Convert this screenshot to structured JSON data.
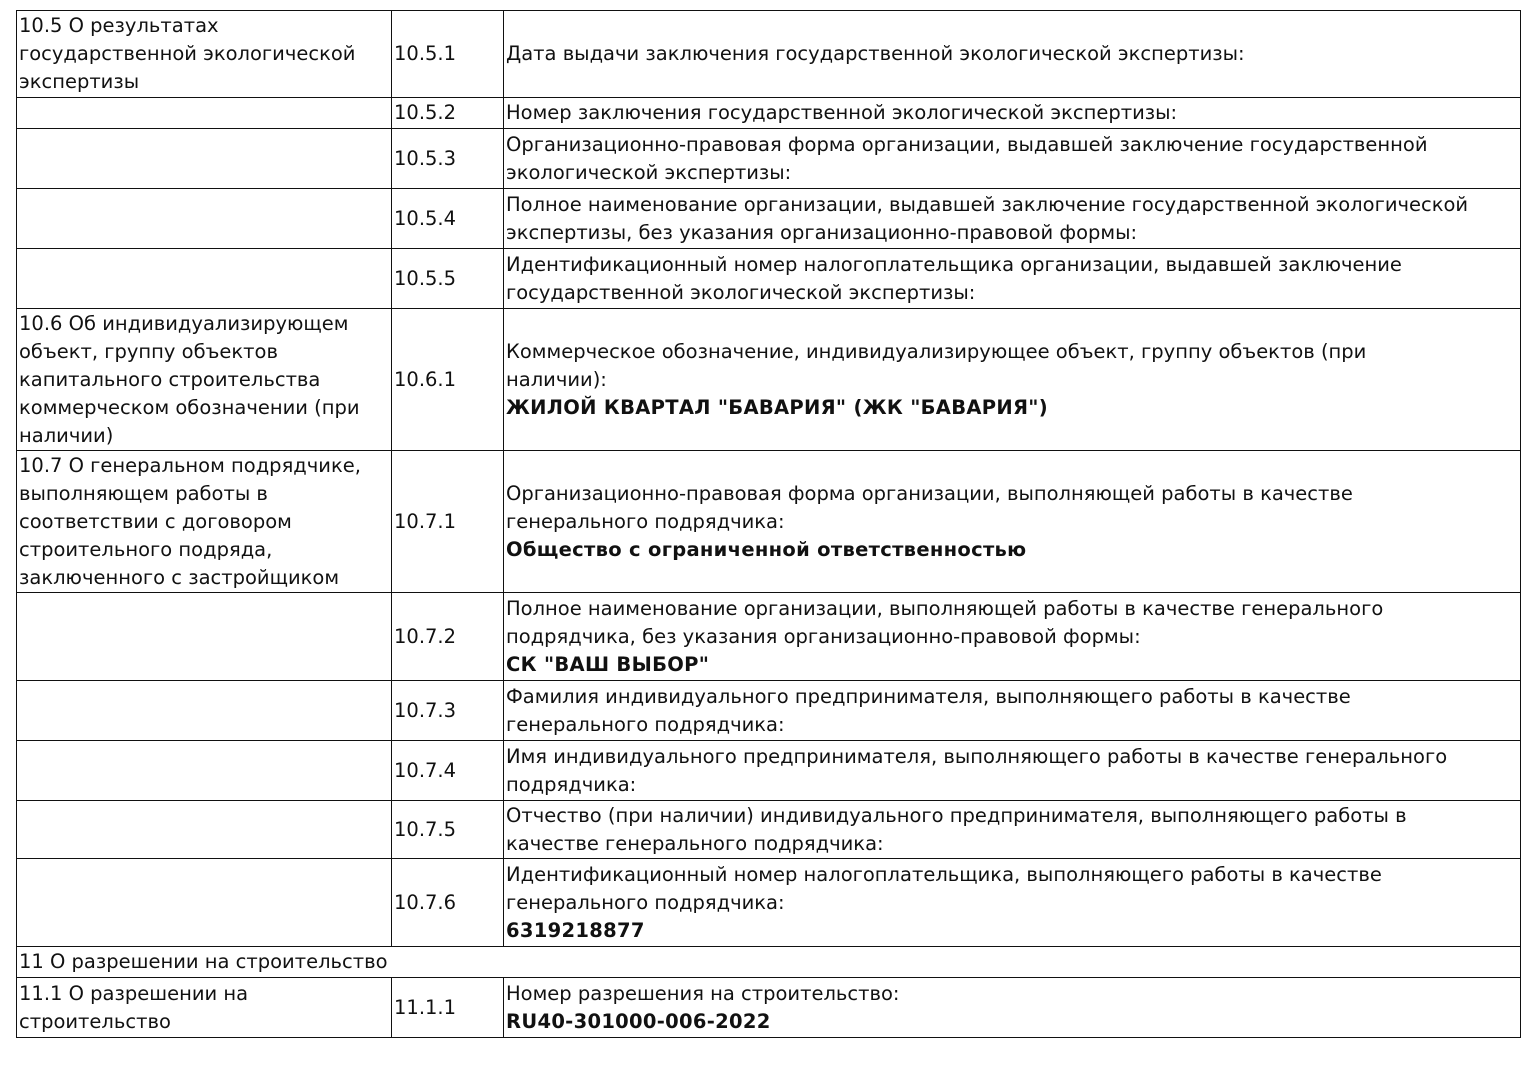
{
  "rows": [
    {
      "section": [
        "10.5 О результатах",
        "государственной экологической",
        "экспертизы"
      ],
      "code": "10.5.1",
      "desc": [
        "Дата выдачи заключения государственной экологической экспертизы:"
      ],
      "value": ""
    },
    {
      "section": [],
      "code": "10.5.2",
      "desc": [
        "Номер заключения государственной экологической экспертизы:"
      ],
      "value": ""
    },
    {
      "section": [],
      "code": "10.5.3",
      "desc": [
        "Организационно-правовая форма организации, выдавшей заключение государственной",
        "экологической экспертизы:"
      ],
      "value": ""
    },
    {
      "section": [],
      "code": "10.5.4",
      "desc": [
        "Полное наименование организации, выдавшей заключение государственной экологической",
        "экспертизы, без указания организационно-правовой формы:"
      ],
      "value": ""
    },
    {
      "section": [],
      "code": "10.5.5",
      "desc": [
        "Идентификационный номер налогоплательщика организации, выдавшей заключение",
        "государственной экологической экспертизы:"
      ],
      "value": ""
    },
    {
      "section": [
        "10.6 Об индивидуализирующем",
        "объект, группу объектов",
        "капитального строительства",
        "коммерческом обозначении (при",
        "наличии)"
      ],
      "code": "10.6.1",
      "desc": [
        "Коммерческое обозначение, индивидуализирующее объект, группу объектов (при",
        "наличии):"
      ],
      "value": "ЖИЛОЙ КВАРТАЛ \"БАВАРИЯ\" (ЖК \"БАВАРИЯ\")"
    },
    {
      "section": [
        "10.7 О генеральном подрядчике,",
        "выполняющем работы в",
        "соответствии с договором",
        "строительного подряда,",
        "заключенного с застройщиком"
      ],
      "code": "10.7.1",
      "desc": [
        "Организационно-правовая форма организации, выполняющей работы в качестве",
        "генерального подрядчика:"
      ],
      "value": "Общество с ограниченной ответственностью"
    },
    {
      "section": [],
      "code": "10.7.2",
      "desc": [
        "Полное наименование организации, выполняющей работы в качестве генерального",
        "подрядчика, без указания организационно-правовой формы:"
      ],
      "value": "СК \"ВАШ ВЫБОР\""
    },
    {
      "section": [],
      "code": "10.7.3",
      "desc": [
        "Фамилия индивидуального предпринимателя, выполняющего работы в качестве",
        "генерального подрядчика:"
      ],
      "value": ""
    },
    {
      "section": [],
      "code": "10.7.4",
      "desc": [
        "Имя индивидуального предпринимателя, выполняющего работы в качестве генерального",
        "подрядчика:"
      ],
      "value": ""
    },
    {
      "section": [],
      "code": "10.7.5",
      "desc": [
        "Отчество (при наличии) индивидуального предпринимателя, выполняющего работы в",
        "качестве генерального подрядчика:"
      ],
      "value": ""
    },
    {
      "section": [],
      "code": "10.7.6",
      "desc": [
        "Идентификационный номер налогоплательщика, выполняющего работы в качестве",
        "генерального подрядчика:"
      ],
      "value": "6319218877"
    },
    {
      "heading": "11 О разрешении на строительство"
    },
    {
      "section": [
        "11.1 О разрешении на",
        "строительство"
      ],
      "code": "11.1.1",
      "desc": [
        "Номер разрешения на строительство:"
      ],
      "value": "RU40-301000-006-2022"
    }
  ]
}
